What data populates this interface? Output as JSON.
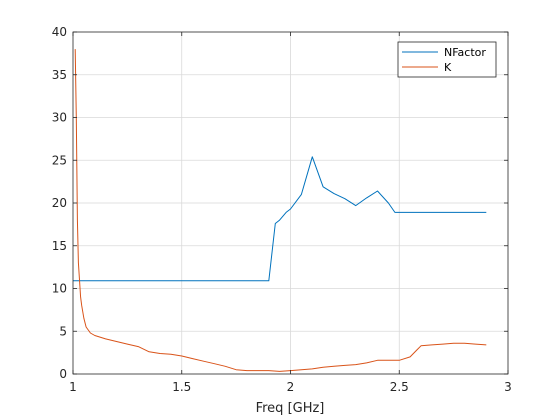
{
  "chart_data": {
    "type": "line",
    "title": "",
    "xlabel": "Freq [GHz]",
    "ylabel": "",
    "xlim": [
      1,
      3
    ],
    "ylim": [
      0,
      40
    ],
    "xticks": [
      1,
      1.5,
      2,
      2.5,
      3
    ],
    "xtick_labels": [
      "1",
      "1.5",
      "2",
      "2.5",
      "3"
    ],
    "yticks": [
      0,
      5,
      10,
      15,
      20,
      25,
      30,
      35,
      40
    ],
    "ytick_labels": [
      "0",
      "5",
      "10",
      "15",
      "20",
      "25",
      "30",
      "35",
      "40"
    ],
    "grid": true,
    "legend_position": "top-right",
    "series": [
      {
        "name": "NFactor",
        "color": "#0072BD",
        "x": [
          1.0,
          1.05,
          1.5,
          1.9,
          1.93,
          1.95,
          1.98,
          2.0,
          2.05,
          2.1,
          2.15,
          2.2,
          2.25,
          2.3,
          2.35,
          2.4,
          2.45,
          2.48,
          2.5,
          2.6,
          2.7,
          2.8,
          2.9
        ],
        "y": [
          10.9,
          10.9,
          10.9,
          10.9,
          17.6,
          18.0,
          18.9,
          19.3,
          21.0,
          25.4,
          21.9,
          21.1,
          20.5,
          19.7,
          20.6,
          21.4,
          20.0,
          18.9,
          18.9,
          18.9,
          18.9,
          18.9,
          18.9
        ]
      },
      {
        "name": "K",
        "color": "#D95319",
        "x": [
          1.01,
          1.015,
          1.02,
          1.025,
          1.03,
          1.035,
          1.04,
          1.05,
          1.06,
          1.08,
          1.1,
          1.15,
          1.2,
          1.25,
          1.3,
          1.35,
          1.4,
          1.45,
          1.5,
          1.55,
          1.6,
          1.65,
          1.7,
          1.75,
          1.8,
          1.85,
          1.9,
          1.95,
          2.0,
          2.05,
          2.1,
          2.15,
          2.2,
          2.25,
          2.3,
          2.35,
          2.4,
          2.45,
          2.5,
          2.55,
          2.58,
          2.6,
          2.65,
          2.7,
          2.75,
          2.8,
          2.85,
          2.9
        ],
        "y": [
          38.0,
          30.0,
          18.0,
          13.0,
          11.0,
          9.0,
          8.0,
          6.5,
          5.5,
          4.8,
          4.5,
          4.1,
          3.8,
          3.5,
          3.2,
          2.6,
          2.4,
          2.3,
          2.1,
          1.8,
          1.5,
          1.2,
          0.9,
          0.5,
          0.4,
          0.4,
          0.4,
          0.3,
          0.4,
          0.5,
          0.6,
          0.8,
          0.9,
          1.0,
          1.1,
          1.3,
          1.6,
          1.6,
          1.6,
          2.0,
          2.8,
          3.3,
          3.4,
          3.5,
          3.6,
          3.6,
          3.5,
          3.4
        ]
      }
    ]
  }
}
